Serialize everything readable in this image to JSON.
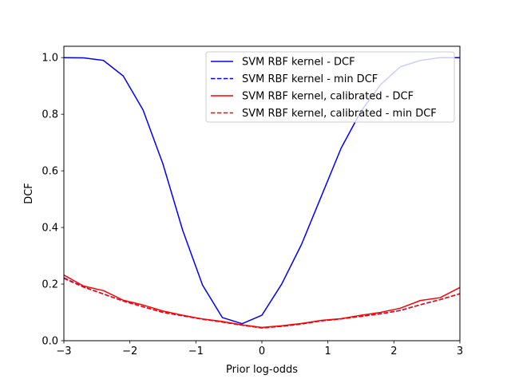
{
  "chart_data": {
    "type": "line",
    "title": "",
    "xlabel": "Prior log-odds",
    "ylabel": "DCF",
    "xlim": [
      -3,
      3
    ],
    "ylim": [
      0,
      1.04
    ],
    "xticks": [
      -3,
      -2,
      -1,
      0,
      1,
      2,
      3
    ],
    "xtick_labels": [
      "−3",
      "−2",
      "−1",
      "0",
      "1",
      "2",
      "3"
    ],
    "yticks": [
      0.0,
      0.2,
      0.4,
      0.6,
      0.8,
      1.0
    ],
    "ytick_labels": [
      "0.0",
      "0.2",
      "0.4",
      "0.6",
      "0.8",
      "1.0"
    ],
    "grid": false,
    "legend_position": "top-right",
    "x": [
      -3.0,
      -2.7,
      -2.4,
      -2.1,
      -1.8,
      -1.5,
      -1.2,
      -0.9,
      -0.6,
      -0.3,
      0.0,
      0.3,
      0.6,
      0.9,
      1.2,
      1.5,
      1.8,
      2.1,
      2.4,
      2.7,
      3.0
    ],
    "series": [
      {
        "name": "SVM RBF kernel - DCF",
        "color": "#0000ff",
        "linestyle": "solid",
        "values": [
          1.0,
          0.999,
          0.99,
          0.935,
          0.815,
          0.625,
          0.39,
          0.197,
          0.082,
          0.06,
          0.09,
          0.2,
          0.34,
          0.51,
          0.68,
          0.81,
          0.905,
          0.968,
          0.99,
          1.0,
          1.0
        ]
      },
      {
        "name": "SVM RBF kernel - min DCF",
        "color": "#0000ff",
        "linestyle": "dashed",
        "values": [
          0.222,
          0.19,
          0.165,
          0.14,
          0.12,
          0.1,
          0.088,
          0.076,
          0.066,
          0.055,
          0.045,
          0.051,
          0.059,
          0.07,
          0.077,
          0.086,
          0.095,
          0.107,
          0.127,
          0.145,
          0.166
        ]
      },
      {
        "name": "SVM RBF kernel, calibrated - DCF",
        "color": "#ff0000",
        "linestyle": "solid",
        "values": [
          0.232,
          0.193,
          0.177,
          0.143,
          0.126,
          0.105,
          0.09,
          0.077,
          0.068,
          0.056,
          0.047,
          0.053,
          0.061,
          0.072,
          0.078,
          0.09,
          0.1,
          0.115,
          0.142,
          0.152,
          0.188
        ]
      },
      {
        "name": "SVM RBF kernel, calibrated - min DCF",
        "color": "#ff0000",
        "linestyle": "dashed",
        "values": [
          0.22,
          0.189,
          0.165,
          0.14,
          0.12,
          0.1,
          0.088,
          0.076,
          0.066,
          0.055,
          0.045,
          0.051,
          0.059,
          0.07,
          0.077,
          0.086,
          0.095,
          0.107,
          0.127,
          0.145,
          0.166
        ]
      }
    ]
  }
}
